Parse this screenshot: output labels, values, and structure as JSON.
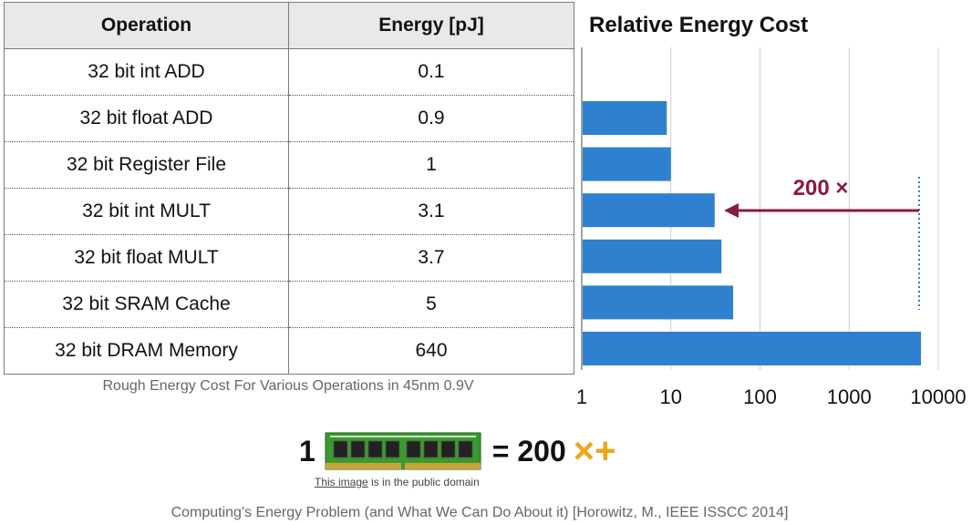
{
  "table": {
    "headers": [
      "Operation",
      "Energy [pJ]"
    ],
    "rows": [
      {
        "operation": "32 bit int ADD",
        "energy": "0.1"
      },
      {
        "operation": "32 bit float ADD",
        "energy": "0.9"
      },
      {
        "operation": "32 bit Register File",
        "energy": "1"
      },
      {
        "operation": "32 bit int MULT",
        "energy": "3.1"
      },
      {
        "operation": "32 bit float MULT",
        "energy": "3.7"
      },
      {
        "operation": "32 bit SRAM Cache",
        "energy": "5"
      },
      {
        "operation": "32 bit DRAM Memory",
        "energy": "640"
      }
    ],
    "caption": "Rough Energy Cost For Various Operations in 45nm 0.9V"
  },
  "chart_data": {
    "type": "bar",
    "orientation": "horizontal",
    "title": "Relative Energy Cost",
    "categories": [
      "32 bit int ADD",
      "32 bit float ADD",
      "32 bit Register File",
      "32 bit int MULT",
      "32 bit float MULT",
      "32 bit SRAM Cache",
      "32 bit DRAM Memory"
    ],
    "values": [
      1,
      9,
      10,
      31,
      37,
      50,
      6400
    ],
    "x_scale": "log",
    "xlim": [
      1,
      10000
    ],
    "x_ticks": [
      "1",
      "10",
      "100",
      "1000",
      "10000"
    ],
    "grid": "vertical",
    "bar_color": "#2f80cf",
    "annotation": {
      "text": "200 ×",
      "color": "#8b1a3a"
    }
  },
  "equation": {
    "lhs": "1",
    "rhs": "= 200",
    "ops": "×+",
    "ops_color": "#f0a519"
  },
  "image_credit": {
    "link_text": "This image",
    "rest": " is in the public domain"
  },
  "footer": "Computing's Energy Problem (and What We Can Do About it) [Horowitz, M., IEEE ISSCC 2014]"
}
